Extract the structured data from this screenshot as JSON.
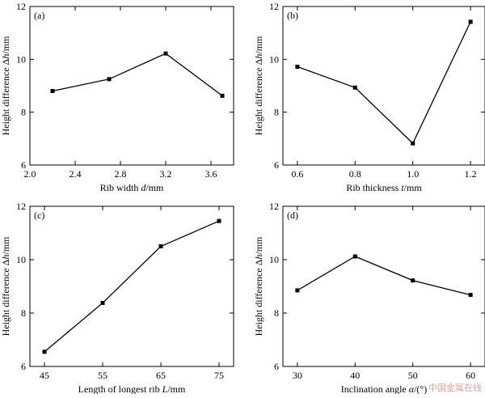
{
  "watermark": "中国金属在线",
  "chart_data": [
    {
      "type": "line",
      "panel": "(a)",
      "xlabel_parts": [
        "Rib width ",
        "d",
        "/mm"
      ],
      "ylabel_parts": [
        "Height difference  Δ",
        "h",
        "/mm"
      ],
      "xlim": [
        2.0,
        3.8
      ],
      "ylim": [
        6,
        12
      ],
      "xticks": [
        2.0,
        2.4,
        2.8,
        3.2,
        3.6
      ],
      "xtick_labels": [
        "2.0",
        "2.4",
        "2.8",
        "3.2",
        "3.6"
      ],
      "yticks": [
        6,
        8,
        10,
        12
      ],
      "ytick_labels": [
        "6",
        "8",
        "10",
        "12"
      ],
      "x": [
        2.2,
        2.7,
        3.2,
        3.7
      ],
      "y": [
        8.8,
        9.25,
        10.22,
        8.62
      ]
    },
    {
      "type": "line",
      "panel": "(b)",
      "xlabel_parts": [
        "Rib thickness ",
        "t",
        "/mm"
      ],
      "ylabel_parts": [
        "Height difference  Δ",
        "h",
        "/mm"
      ],
      "xlim": [
        0.55,
        1.25
      ],
      "ylim": [
        6,
        12
      ],
      "xticks": [
        0.6,
        0.8,
        1.0,
        1.2
      ],
      "xtick_labels": [
        "0.6",
        "0.8",
        "1.0",
        "1.2"
      ],
      "yticks": [
        6,
        8,
        10,
        12
      ],
      "ytick_labels": [
        "6",
        "8",
        "10",
        "12"
      ],
      "x": [
        0.6,
        0.8,
        1.0,
        1.2
      ],
      "y": [
        9.72,
        8.93,
        6.82,
        11.42
      ]
    },
    {
      "type": "line",
      "panel": "(c)",
      "xlabel_parts": [
        "Length of longest rib ",
        "L",
        "/mm"
      ],
      "ylabel_parts": [
        "Height difference  Δ",
        "h",
        "/mm"
      ],
      "xlim": [
        42.5,
        77.5
      ],
      "ylim": [
        6,
        12
      ],
      "xticks": [
        45,
        55,
        65,
        75
      ],
      "xtick_labels": [
        "45",
        "55",
        "65",
        "75"
      ],
      "yticks": [
        6,
        8,
        10,
        12
      ],
      "ytick_labels": [
        "6",
        "8",
        "10",
        "12"
      ],
      "x": [
        45,
        55,
        65,
        75
      ],
      "y": [
        6.55,
        8.38,
        10.5,
        11.45
      ]
    },
    {
      "type": "line",
      "panel": "(d)",
      "xlabel_parts": [
        "Inclination angle  ",
        "α",
        "/(°)"
      ],
      "ylabel_parts": [
        "Height difference  Δ",
        "h",
        "/mm"
      ],
      "xlim": [
        27.5,
        62.5
      ],
      "ylim": [
        6,
        12
      ],
      "xticks": [
        30,
        40,
        50,
        60
      ],
      "xtick_labels": [
        "30",
        "40",
        "50",
        "60"
      ],
      "yticks": [
        6,
        8,
        10,
        12
      ],
      "ytick_labels": [
        "6",
        "8",
        "10",
        "12"
      ],
      "x": [
        30,
        40,
        50,
        60
      ],
      "y": [
        8.85,
        10.12,
        9.22,
        8.68
      ]
    }
  ]
}
